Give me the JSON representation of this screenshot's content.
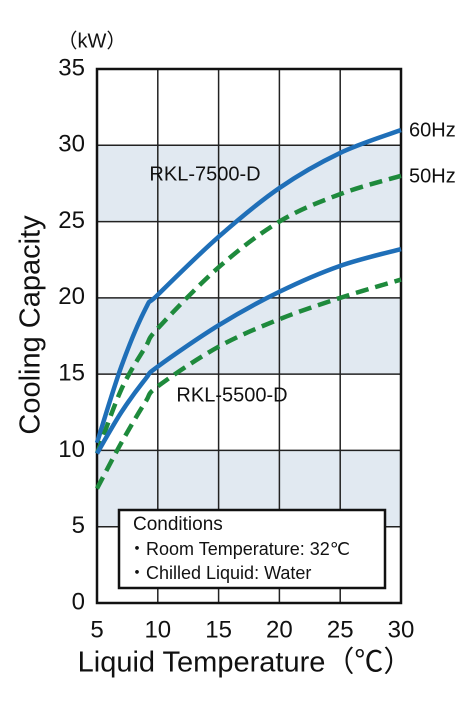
{
  "chart_data": {
    "type": "line",
    "y_unit": "（kW）",
    "y_label": "Cooling Capacity",
    "x_label": "Liquid Temperature（℃）",
    "x": [
      5,
      7,
      9,
      10,
      15,
      20,
      25,
      30
    ],
    "xlim": [
      5,
      30
    ],
    "xticks": [
      5,
      10,
      15,
      20,
      25,
      30
    ],
    "ylim": [
      0,
      35
    ],
    "yticks": [
      0,
      5,
      10,
      15,
      20,
      25,
      30,
      35
    ],
    "grid": true,
    "frequencies": [
      {
        "name": "60Hz",
        "color": "#1f6fb8",
        "dashed": false
      },
      {
        "name": "50Hz",
        "color": "#1e8a3c",
        "dashed": true
      }
    ],
    "models": [
      {
        "name": "RKL-7500-D",
        "series": [
          [
            10.5,
            15.5,
            19.3,
            20.2,
            24,
            27.2,
            29.5,
            31
          ],
          [
            9.8,
            14,
            16.8,
            18,
            22,
            25,
            26.8,
            28
          ]
        ]
      },
      {
        "name": "RKL-5500-D",
        "series": [
          [
            9.8,
            12.5,
            14.7,
            15.5,
            18.2,
            20.4,
            22.1,
            23.2
          ],
          [
            7.5,
            10.5,
            13.2,
            14.2,
            16.8,
            18.6,
            20,
            21.2
          ]
        ]
      }
    ],
    "conditions": {
      "title": "Conditions",
      "items": [
        "・Room Temperature: 32℃",
        "・Chilled Liquid: Water"
      ]
    }
  }
}
